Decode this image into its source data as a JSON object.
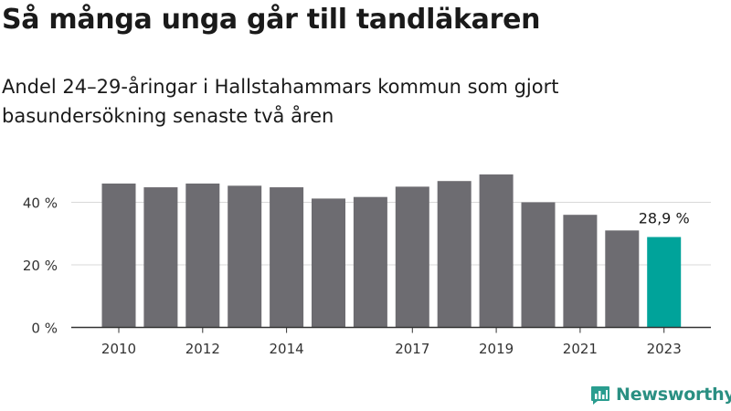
{
  "title": "Så många unga går till tandläkaren",
  "subtitle": "Andel 24–29-åringar i Hallstahammars kommun som gjort basundersökning senaste två åren",
  "brand": {
    "name": "Newsworthy",
    "color": "#2a9d8f"
  },
  "chart_data": {
    "type": "bar",
    "categories": [
      "2010",
      "2011",
      "2012",
      "2013",
      "2014",
      "2015",
      "2016",
      "2017",
      "2018",
      "2019",
      "2020",
      "2021",
      "2022",
      "2023"
    ],
    "values": [
      46,
      44.8,
      46,
      45.3,
      44.8,
      41.2,
      41.7,
      45,
      46.8,
      48.9,
      40,
      36,
      31,
      28.9
    ],
    "x_tick_labels": [
      "2010",
      "2012",
      "2014",
      "2017",
      "2019",
      "2021",
      "2023"
    ],
    "y_ticks": [
      0,
      20,
      40
    ],
    "y_tick_labels": [
      "0 %",
      "20 %",
      "40 %"
    ],
    "ylim": [
      0,
      50
    ],
    "grid": true,
    "colors": {
      "bar": "#6d6c71",
      "highlight": "#00a39a",
      "grid": "#d9d9d9",
      "axis": "#333333"
    },
    "annotation": {
      "category": "2023",
      "label": "28,9 %"
    }
  }
}
